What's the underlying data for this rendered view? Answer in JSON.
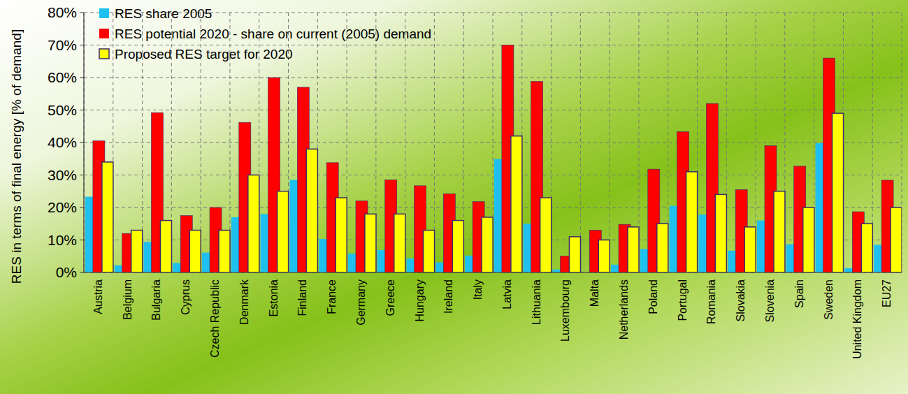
{
  "chart_data": {
    "type": "bar",
    "y_label": "RES in terms of final energy [% of demand]",
    "categories": [
      "Austria",
      "Belgium",
      "Bulgaria",
      "Cyprus",
      "Czech Republic",
      "Denmark",
      "Estonia",
      "Finland",
      "France",
      "Germany",
      "Greece",
      "Hungary",
      "Ireland",
      "Italy",
      "Latvia",
      "Lithuania",
      "Luxembourg",
      "Malta",
      "Netherlands",
      "Poland",
      "Portugal",
      "Romania",
      "Slovakia",
      "Slovenia",
      "Spain",
      "Sweden",
      "United Kingdom",
      "EU27"
    ],
    "series": [
      {
        "name": "RES share 2005",
        "color": "#1ec0f0",
        "values": [
          23.3,
          2.2,
          9.4,
          2.9,
          6.1,
          17,
          18,
          28.5,
          10.3,
          5.8,
          6.9,
          4.3,
          3.1,
          5.2,
          34.9,
          15,
          0.9,
          0,
          2.4,
          7.2,
          20.5,
          17.8,
          6.7,
          16,
          8.7,
          39.8,
          1.3,
          8.5
        ]
      },
      {
        "name": "RES potential 2020 - share on current (2005) demand",
        "color": "#ff0000",
        "values": [
          40.5,
          12,
          49.2,
          17.5,
          20,
          46.2,
          60,
          57,
          33.8,
          22,
          28.5,
          26.7,
          24.2,
          21.8,
          70,
          58.8,
          5,
          13,
          14.8,
          31.8,
          43.3,
          52,
          25.5,
          39,
          32.7,
          66,
          18.7,
          28.4
        ]
      },
      {
        "name": "Proposed RES target for 2020",
        "color": "#ffff00",
        "values": [
          34,
          13,
          16,
          13,
          13,
          30,
          25,
          38,
          23,
          18,
          18,
          13,
          16,
          17,
          42,
          23,
          11,
          10,
          14,
          15,
          31,
          24,
          14,
          25,
          20,
          49,
          15,
          20
        ]
      }
    ],
    "ylim": [
      0,
      80
    ],
    "yticks": [
      {
        "value": 0,
        "label": "0%"
      },
      {
        "value": 10,
        "label": "10%"
      },
      {
        "value": 20,
        "label": "20%"
      },
      {
        "value": 30,
        "label": "30%"
      },
      {
        "value": 40,
        "label": "40%"
      },
      {
        "value": 50,
        "label": "50%"
      },
      {
        "value": 60,
        "label": "60%"
      },
      {
        "value": 70,
        "label": "70%"
      },
      {
        "value": 80,
        "label": "80%"
      }
    ],
    "grid": true,
    "legend": "upper left"
  }
}
